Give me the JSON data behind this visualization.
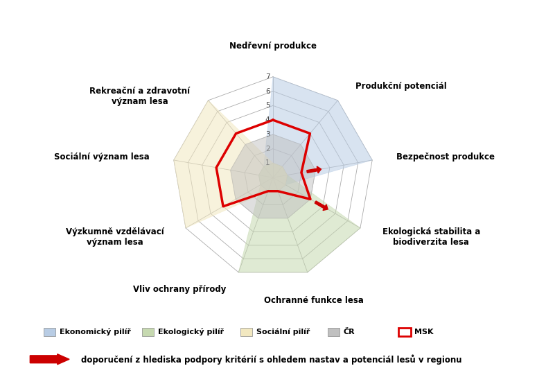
{
  "categories": [
    "Nedřevní produkce",
    "Produkční potenciál",
    "Bezpečnost produkce",
    "Ekologická stabilita a\nbiodiverzita lesa",
    "Ochranné funkce lesa",
    "Vliv ochrany přírody",
    "Výzkumně vzdělávací\nvýznam lesa",
    "Sociální význam lesa",
    "Rekreační a zdravotní\nvýznam lesa"
  ],
  "series_order": [
    "Ekonomický pilíř",
    "Ekologický pilíř",
    "Sociální pilíř",
    "ČR",
    "MSK"
  ],
  "series": {
    "Ekonomický pilíř": {
      "values": [
        7,
        7,
        7,
        1,
        1,
        1,
        1,
        1,
        1
      ],
      "color": "#b8cce4",
      "fill_alpha": 0.55,
      "is_line_only": false,
      "zorder": 2
    },
    "Ekologický pilíř": {
      "values": [
        1,
        1,
        1,
        7,
        7,
        7,
        1,
        1,
        1
      ],
      "color": "#c6d9b0",
      "fill_alpha": 0.55,
      "is_line_only": false,
      "zorder": 2
    },
    "Sociální pilíř": {
      "values": [
        1,
        1,
        1,
        1,
        1,
        1,
        7,
        7,
        7
      ],
      "color": "#f2e8c0",
      "fill_alpha": 0.55,
      "is_line_only": false,
      "zorder": 2
    },
    "ČR": {
      "values": [
        3,
        3,
        3,
        3,
        3,
        3,
        3,
        3,
        3
      ],
      "color": "#c0c0c0",
      "fill_alpha": 0.5,
      "is_line_only": false,
      "zorder": 3
    },
    "MSK": {
      "values": [
        4,
        4,
        2,
        3,
        1,
        1,
        4,
        4,
        4
      ],
      "color": "#dd0000",
      "fill_alpha": 0.0,
      "is_line_only": true,
      "zorder": 6
    }
  },
  "max_val": 7,
  "grid_levels": [
    1,
    2,
    3,
    4,
    5,
    6,
    7
  ],
  "grid_color": "#aaaaaa",
  "spoke_color": "#aaaaaa",
  "background_color": "#ffffff",
  "legend_items": [
    {
      "label": "Ekonomický pilíř",
      "color": "#b8cce4",
      "is_line": false
    },
    {
      "label": "Ekologický pilíř",
      "color": "#c6d9b0",
      "is_line": false
    },
    {
      "label": "Sociální pilíř",
      "color": "#f2e8c0",
      "is_line": false
    },
    {
      "label": "ČR",
      "color": "#c0c0c0",
      "is_line": false
    },
    {
      "label": "MSK",
      "color": "#dd0000",
      "is_line": true
    }
  ],
  "arrow_annotation": "doporučení z hlediska podpory kritérií s ohledem nastav a potenciál lesů v regionu",
  "arrow_indices": [
    2,
    3
  ],
  "tick_labels": [
    "1",
    "2",
    "3",
    "4",
    "5",
    "6",
    "7"
  ],
  "label_fontsize": 8.5,
  "tick_fontsize": 7.5,
  "label_pad": [
    20,
    20,
    20,
    20,
    20,
    20,
    20,
    20,
    20
  ]
}
